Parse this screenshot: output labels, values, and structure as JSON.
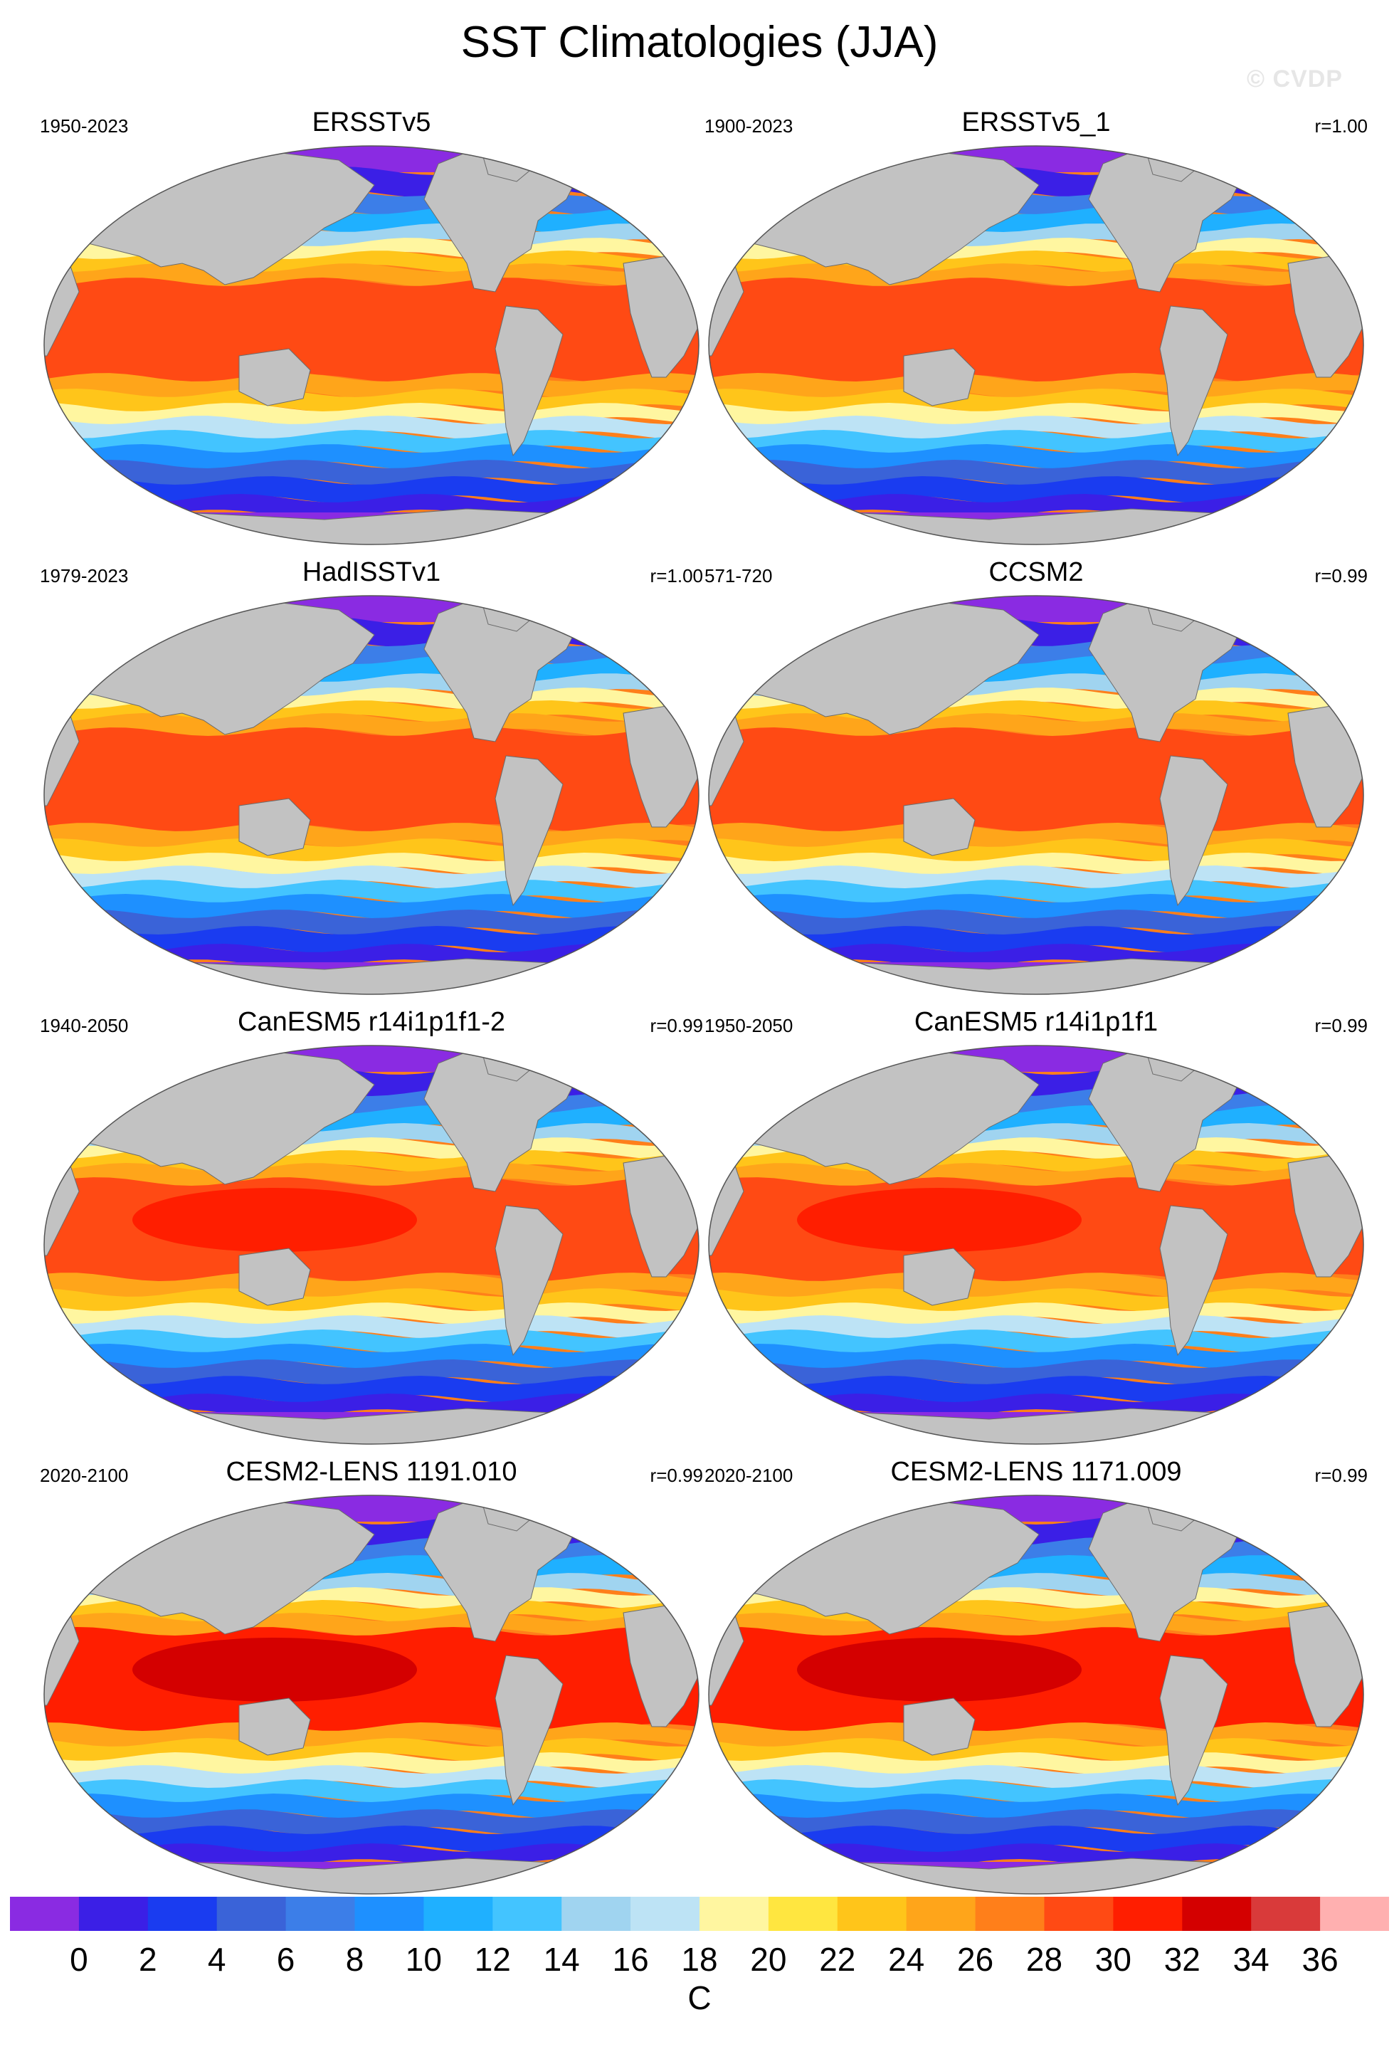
{
  "title": "SST Climatologies (JJA)",
  "watermark": "© CVDP",
  "panels": [
    {
      "title": "ERSSTv5",
      "period": "1950-2023",
      "corr": ""
    },
    {
      "title": "ERSSTv5_1",
      "period": "1900-2023",
      "corr": "r=1.00"
    },
    {
      "title": "HadISSTv1",
      "period": "1979-2023",
      "corr": "r=1.00"
    },
    {
      "title": "CCSM2",
      "period": "571-720",
      "corr": "r=0.99"
    },
    {
      "title": "CanESM5 r14i1p1f1-2",
      "period": "1940-2050",
      "corr": "r=0.99"
    },
    {
      "title": "CanESM5 r14i1p1f1",
      "period": "1950-2050",
      "corr": "r=0.99"
    },
    {
      "title": "CESM2-LENS 1191.010",
      "period": "2020-2100",
      "corr": "r=0.99"
    },
    {
      "title": "CESM2-LENS 1171.009",
      "period": "2020-2100",
      "corr": "r=0.99"
    }
  ],
  "colorbar": {
    "units": "C",
    "labels": [
      "0",
      "2",
      "4",
      "6",
      "8",
      "10",
      "12",
      "14",
      "16",
      "18",
      "20",
      "22",
      "24",
      "26",
      "28",
      "30",
      "32",
      "34",
      "36"
    ],
    "colors": [
      "#8a2be2",
      "#3b1fe6",
      "#1a3cf0",
      "#3a63d8",
      "#3c7ee8",
      "#1e90ff",
      "#1fb0ff",
      "#43c4ff",
      "#a0d4f0",
      "#bde3f5",
      "#fff6a0",
      "#ffe640",
      "#ffc51a",
      "#ffa51a",
      "#ff7f1a",
      "#ff4a14",
      "#ff1e00",
      "#d40000",
      "#d93a3a",
      "#ffb0b0"
    ]
  },
  "map_colors": {
    "land": "#c2c2c2",
    "border": "#6a6a6a"
  }
}
